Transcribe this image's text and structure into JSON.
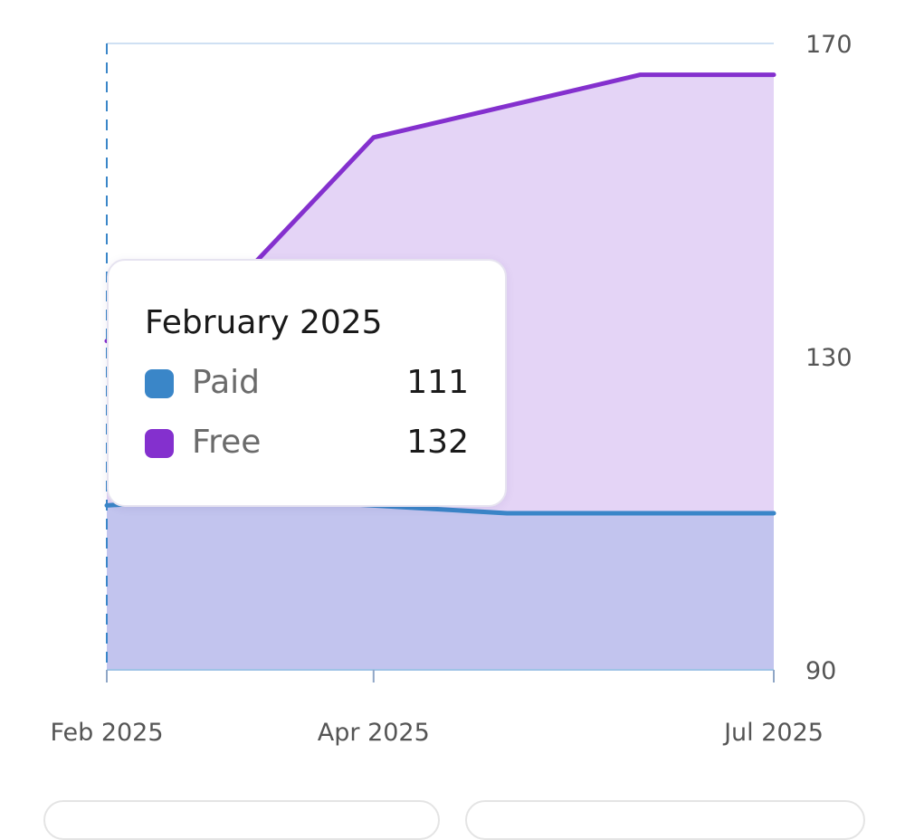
{
  "chart_data": {
    "type": "area",
    "stacked": false,
    "x": [
      "2025-02",
      "2025-03",
      "2025-04",
      "2025-05",
      "2025-06",
      "2025-07"
    ],
    "x_tick_labels": [
      "Feb 2025",
      "Apr 2025",
      "Jul 2025"
    ],
    "x_tick_values": [
      "2025-02",
      "2025-04",
      "2025-07"
    ],
    "series": [
      {
        "name": "Free",
        "color": "#8430CE",
        "fill": "#E4D4F6",
        "values": [
          132,
          140,
          158,
          162,
          166,
          166
        ]
      },
      {
        "name": "Paid",
        "color": "#3A86C8",
        "fill": "#C2C4EE",
        "values": [
          111,
          112,
          111,
          110,
          110,
          110
        ]
      }
    ],
    "y_axis": {
      "position": "right",
      "ticks": [
        90,
        130,
        170
      ],
      "ylim": [
        90,
        170
      ]
    },
    "grid": {
      "horizontal": true,
      "vertical": false
    },
    "crosshair_x": "2025-02",
    "tooltip": {
      "title": "February 2025",
      "rows": [
        {
          "name": "Paid",
          "value": "111",
          "color": "#3A86C8"
        },
        {
          "name": "Free",
          "value": "132",
          "color": "#8430CE"
        }
      ]
    }
  }
}
